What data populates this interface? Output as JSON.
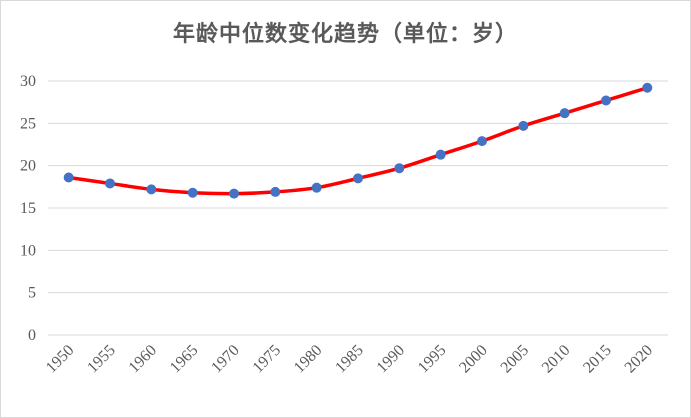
{
  "chart_data": {
    "type": "line",
    "title": "年龄中位数变化趋势（单位：岁）",
    "xlabel": "",
    "ylabel": "",
    "categories": [
      "1950",
      "1955",
      "1960",
      "1965",
      "1970",
      "1975",
      "1980",
      "1985",
      "1990",
      "1995",
      "2000",
      "2005",
      "2010",
      "2015",
      "2020"
    ],
    "series": [
      {
        "values": [
          18.6,
          17.9,
          17.2,
          16.8,
          16.7,
          16.9,
          17.4,
          18.5,
          19.7,
          21.3,
          22.9,
          24.7,
          26.2,
          27.7,
          29.2
        ]
      }
    ],
    "ylim": [
      0,
      30
    ],
    "yticks": [
      "0",
      "5",
      "10",
      "15",
      "20",
      "25",
      "30"
    ],
    "grid": true,
    "legend": "none",
    "colors": {
      "line": "#ff0000",
      "marker": "#4472c4",
      "grid": "#d9d9d9"
    }
  }
}
